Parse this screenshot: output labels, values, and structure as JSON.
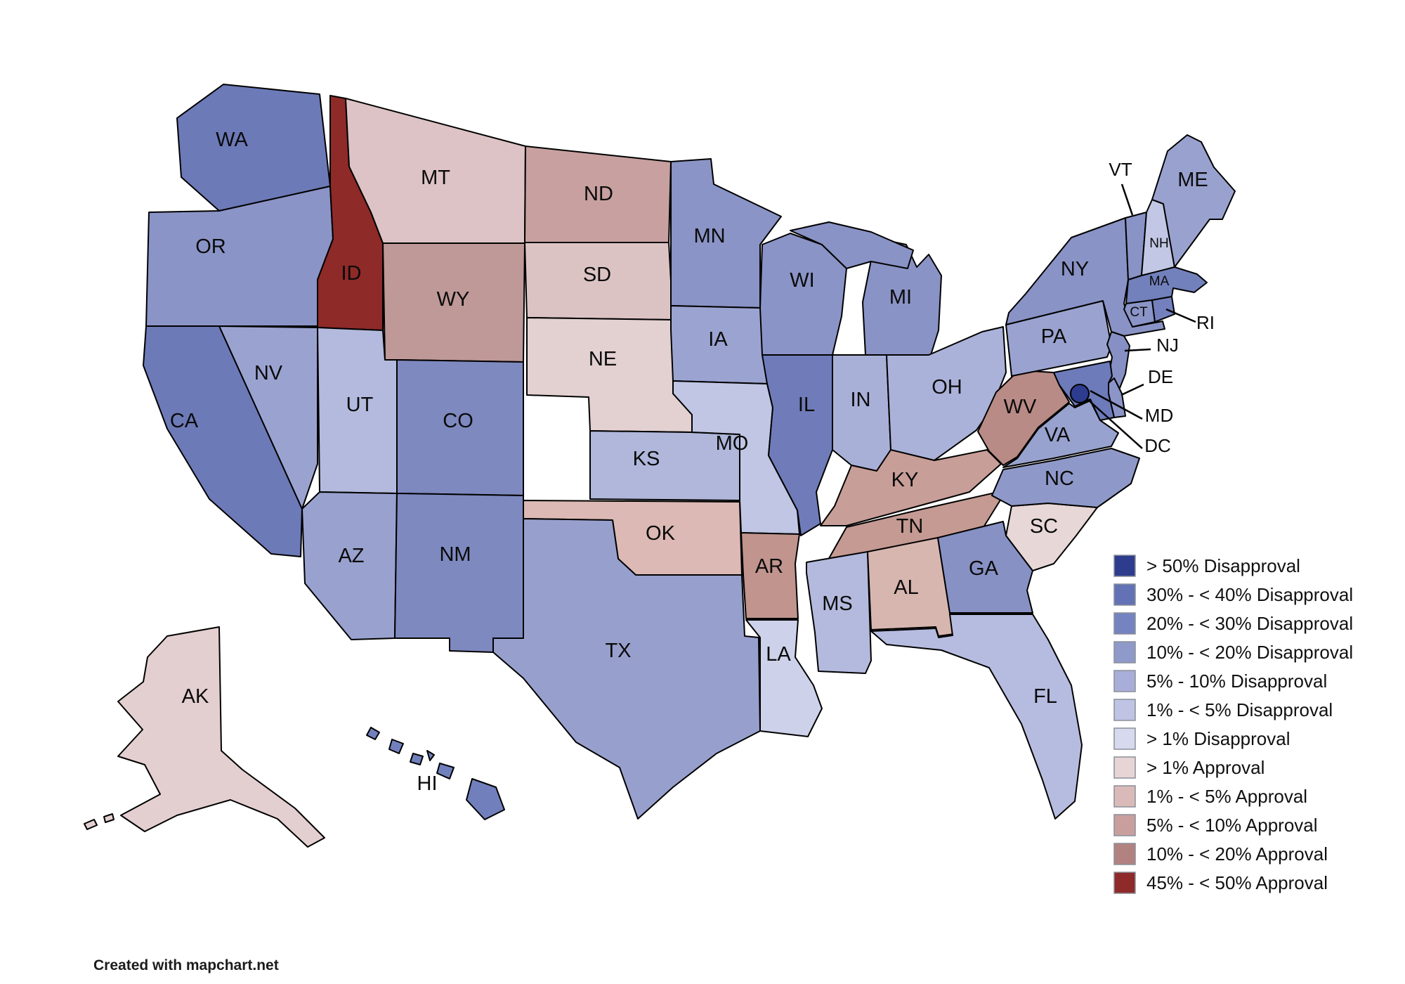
{
  "footer": {
    "credit": "Created with mapchart.net"
  },
  "legend": {
    "position": "right",
    "items": [
      {
        "label": "> 50% Disapproval",
        "color": "#2e3c8e"
      },
      {
        "label": "30% - < 40% Disapproval",
        "color": "#6272b4"
      },
      {
        "label": "20% - < 30% Disapproval",
        "color": "#7583c0"
      },
      {
        "label": "10% - < 20% Disapproval",
        "color": "#8f9aca"
      },
      {
        "label": "5% - 10% Disapproval",
        "color": "#a8aed7"
      },
      {
        "label": "1% - < 5% Disapproval",
        "color": "#bfc4e4"
      },
      {
        "label": "> 1% Disapproval",
        "color": "#d7daee"
      },
      {
        "label": "> 1% Approval",
        "color": "#e7d5d5"
      },
      {
        "label": "1% - < 5% Approval",
        "color": "#dabab9"
      },
      {
        "label": "5% - < 10% Approval",
        "color": "#c99f9e"
      },
      {
        "label": "10% - < 20% Approval",
        "color": "#b28281"
      },
      {
        "label": "45% - < 50% Approval",
        "color": "#8e2a29"
      }
    ]
  },
  "map": {
    "states": [
      {
        "abbr": "WA",
        "category": "30% - < 40% Disapproval",
        "fill": "#6d7ab8"
      },
      {
        "abbr": "OR",
        "category": "10% - < 20% Disapproval",
        "fill": "#8b94c7"
      },
      {
        "abbr": "CA",
        "category": "30% - < 40% Disapproval",
        "fill": "#6d7ab8"
      },
      {
        "abbr": "NV",
        "category": "10% - < 20% Disapproval",
        "fill": "#9aa3d0"
      },
      {
        "abbr": "ID",
        "category": "45% - < 50% Approval",
        "fill": "#8e2a28"
      },
      {
        "abbr": "MT",
        "category": "1% - < 5% Approval",
        "fill": "#ddc3c5"
      },
      {
        "abbr": "WY",
        "category": "5% - < 10% Approval",
        "fill": "#bf9898"
      },
      {
        "abbr": "UT",
        "category": "5% - 10% Disapproval",
        "fill": "#b3badd"
      },
      {
        "abbr": "CO",
        "category": "20% - < 30% Disapproval",
        "fill": "#7e89c0"
      },
      {
        "abbr": "AZ",
        "category": "10% - < 20% Disapproval",
        "fill": "#99a2cf"
      },
      {
        "abbr": "NM",
        "category": "20% - < 30% Disapproval",
        "fill": "#7e89c0"
      },
      {
        "abbr": "ND",
        "category": "5% - < 10% Approval",
        "fill": "#c8a0a0"
      },
      {
        "abbr": "SD",
        "category": "1% - < 5% Approval",
        "fill": "#dcc3c3"
      },
      {
        "abbr": "NE",
        "category": "> 1% Approval",
        "fill": "#e3d0d1"
      },
      {
        "abbr": "KS",
        "category": "5% - 10% Disapproval",
        "fill": "#b0b7db"
      },
      {
        "abbr": "OK",
        "category": "1% - < 5% Approval",
        "fill": "#dcb9b4"
      },
      {
        "abbr": "TX",
        "category": "10% - < 20% Disapproval",
        "fill": "#97a0cd"
      },
      {
        "abbr": "MN",
        "category": "10% - < 20% Disapproval",
        "fill": "#8a94c6"
      },
      {
        "abbr": "IA",
        "category": "10% - < 20% Disapproval",
        "fill": "#9ba4d1"
      },
      {
        "abbr": "MO",
        "category": "1% - < 5% Disapproval",
        "fill": "#c0c6e4"
      },
      {
        "abbr": "AR",
        "category": "5% - < 10% Approval",
        "fill": "#c1948e"
      },
      {
        "abbr": "LA",
        "category": "> 1% Disapproval",
        "fill": "#cdd2ea"
      },
      {
        "abbr": "WI",
        "category": "10% - < 20% Disapproval",
        "fill": "#8b94c7"
      },
      {
        "abbr": "IL",
        "category": "30% - < 40% Disapproval",
        "fill": "#6f7cb9"
      },
      {
        "abbr": "MI",
        "category": "10% - < 20% Disapproval",
        "fill": "#8a93c6"
      },
      {
        "abbr": "IN",
        "category": "5% - 10% Disapproval",
        "fill": "#a9b0d8"
      },
      {
        "abbr": "OH",
        "category": "5% - 10% Disapproval",
        "fill": "#abb2d9"
      },
      {
        "abbr": "KY",
        "category": "5% - < 10% Approval",
        "fill": "#c89e98"
      },
      {
        "abbr": "TN",
        "category": "5% - < 10% Approval",
        "fill": "#c49a92"
      },
      {
        "abbr": "MS",
        "category": "5% - 10% Disapproval",
        "fill": "#b3badd"
      },
      {
        "abbr": "AL",
        "category": "1% - < 5% Approval",
        "fill": "#d8b6b0"
      },
      {
        "abbr": "GA",
        "category": "10% - < 20% Disapproval",
        "fill": "#8791c4"
      },
      {
        "abbr": "FL",
        "category": "5% - 10% Disapproval",
        "fill": "#b6bce0"
      },
      {
        "abbr": "SC",
        "category": "> 1% Approval",
        "fill": "#e8d7d7"
      },
      {
        "abbr": "NC",
        "category": "10% - < 20% Disapproval",
        "fill": "#8f99c9"
      },
      {
        "abbr": "VA",
        "category": "10% - < 20% Disapproval",
        "fill": "#98a2ce"
      },
      {
        "abbr": "WV",
        "category": "10% - < 20% Approval",
        "fill": "#b98b86"
      },
      {
        "abbr": "PA",
        "category": "10% - < 20% Disapproval",
        "fill": "#9aa3d0"
      },
      {
        "abbr": "NY",
        "category": "10% - < 20% Disapproval",
        "fill": "#8a93c6"
      },
      {
        "abbr": "NJ",
        "category": "10% - < 20% Disapproval",
        "fill": "#8790c4"
      },
      {
        "abbr": "DE",
        "category": "10% - < 20% Disapproval",
        "fill": "#8b95c8"
      },
      {
        "abbr": "MD",
        "category": "30% - < 40% Disapproval",
        "fill": "#6d7bba"
      },
      {
        "abbr": "DC",
        "category": "> 50% Disapproval",
        "fill": "#2d3c8e"
      },
      {
        "abbr": "VT",
        "category": "10% - < 20% Disapproval",
        "fill": "#8a93c6"
      },
      {
        "abbr": "NH",
        "category": "1% - < 5% Disapproval",
        "fill": "#c2c7e5"
      },
      {
        "abbr": "ME",
        "category": "10% - < 20% Disapproval",
        "fill": "#99a2cf"
      },
      {
        "abbr": "MA",
        "category": "30% - < 40% Disapproval",
        "fill": "#7280bc"
      },
      {
        "abbr": "CT",
        "category": "10% - < 20% Disapproval",
        "fill": "#8b94c7"
      },
      {
        "abbr": "RI",
        "category": "20% - < 30% Disapproval",
        "fill": "#7480bd"
      },
      {
        "abbr": "AK",
        "category": "> 1% Approval",
        "fill": "#e4cfd0"
      },
      {
        "abbr": "HI",
        "category": "20% - < 30% Disapproval",
        "fill": "#7180bd"
      }
    ]
  }
}
